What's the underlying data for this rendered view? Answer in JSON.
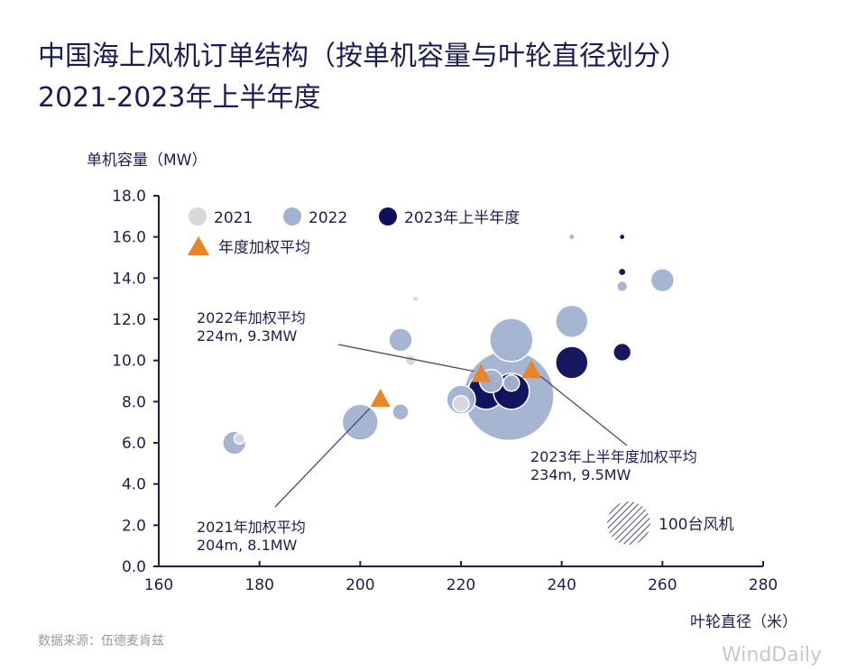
{
  "chart_data": {
    "type": "scatter",
    "title": "中国海上风机订单结构（按单机容量与叶轮直径划分）",
    "subtitle": "2021-2023年上半年度",
    "xlabel": "叶轮直径（米）",
    "ylabel": "单机容量（MW）",
    "xlim": [
      160,
      280
    ],
    "ylim": [
      0,
      18
    ],
    "x_ticks": [
      "160",
      "180",
      "200",
      "220",
      "240",
      "260",
      "280"
    ],
    "y_ticks": [
      "0.0",
      "2.0",
      "4.0",
      "6.0",
      "8.0",
      "10.0",
      "12.0",
      "14.0",
      "16.0",
      "18.0"
    ],
    "grid": false,
    "legend_placement": "top-left",
    "size_legend": {
      "label": "100台风机",
      "turbines": 100
    },
    "series": [
      {
        "name": "2021",
        "color": "#d8d8dc",
        "points": [
          {
            "x": 176,
            "y": 6.2,
            "turbines": 6
          },
          {
            "x": 210,
            "y": 10.0,
            "turbines": 6
          },
          {
            "x": 220,
            "y": 7.9,
            "turbines": 14
          },
          {
            "x": 211,
            "y": 13.0,
            "turbines": 1
          }
        ]
      },
      {
        "name": "2022",
        "color": "#a3b3cf",
        "points": [
          {
            "x": 175,
            "y": 6.0,
            "turbines": 29
          },
          {
            "x": 200,
            "y": 7.0,
            "turbines": 69
          },
          {
            "x": 208,
            "y": 7.5,
            "turbines": 14
          },
          {
            "x": 208,
            "y": 11.0,
            "turbines": 29
          },
          {
            "x": 229.5,
            "y": 8.3,
            "turbines": 434
          },
          {
            "x": 230,
            "y": 11.0,
            "turbines": 100
          },
          {
            "x": 220,
            "y": 8.1,
            "turbines": 44
          },
          {
            "x": 226,
            "y": 9.0,
            "turbines": 29
          },
          {
            "x": 230,
            "y": 8.9,
            "turbines": 14
          },
          {
            "x": 242,
            "y": 11.9,
            "turbines": 56
          },
          {
            "x": 252,
            "y": 13.6,
            "turbines": 6
          },
          {
            "x": 260,
            "y": 13.9,
            "turbines": 29
          },
          {
            "x": 242,
            "y": 16.0,
            "turbines": 1
          }
        ]
      },
      {
        "name": "2023年上半年度",
        "color": "#0e0e5c",
        "points": [
          {
            "x": 225,
            "y": 8.5,
            "turbines": 69
          },
          {
            "x": 230,
            "y": 8.5,
            "turbines": 69
          },
          {
            "x": 242,
            "y": 9.9,
            "turbines": 56
          },
          {
            "x": 252,
            "y": 10.4,
            "turbines": 17
          },
          {
            "x": 252,
            "y": 14.3,
            "turbines": 2
          },
          {
            "x": 252,
            "y": 16.0,
            "turbines": 1
          }
        ]
      }
    ],
    "weighted_average": {
      "name": "年度加权平均",
      "color": "#e8852a",
      "points": [
        {
          "year": "2021",
          "x": 204,
          "y": 8.1,
          "label1": "2021年加权平均",
          "label2": "204m, 8.1MW"
        },
        {
          "year": "2022",
          "x": 224,
          "y": 9.3,
          "label1": "2022年加权平均",
          "label2": "224m, 9.3MW"
        },
        {
          "year": "2023",
          "x": 234,
          "y": 9.5,
          "label1": "2023年上半年度加权平均",
          "label2": "234m, 9.5MW"
        }
      ]
    }
  },
  "footer": {
    "source": "数据来源：伍德麦肯兹",
    "watermark": "WindDaily"
  }
}
